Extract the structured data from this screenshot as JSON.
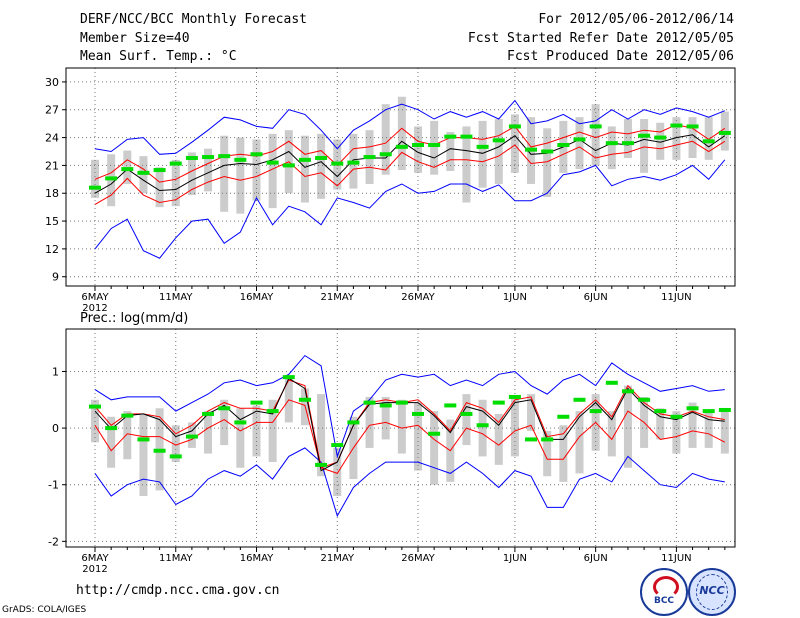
{
  "header": {
    "title": "DERF/NCC/BCC Monthly Forecast",
    "member_size": "Member Size=40",
    "variable": "Mean Surf. Temp.: °C",
    "period": "For 2012/05/06-2012/06/14",
    "started": "Fcst Started Refer Date 2012/05/05",
    "produced": "Fcst Produced Date 2012/05/06"
  },
  "footer": {
    "url": "http://cmdp.ncc.cma.gov.cn",
    "grads": "GrADS: COLA/IGES",
    "logo_bcc": "BCC",
    "logo_ncc": "NCC"
  },
  "colors": {
    "envelope": "#0000ff",
    "spread": "#ff0000",
    "mean": "#000000",
    "member": "#00dd00",
    "box": "#cccccc"
  },
  "chart_data": [
    {
      "type": "line",
      "title": "Mean Surf. Temp.: °C",
      "x_labels": [
        "6MAY",
        "11MAY",
        "16MAY",
        "21MAY",
        "26MAY",
        "1JUN",
        "6JUN",
        "11JUN"
      ],
      "x_label_days": [
        0,
        5,
        10,
        15,
        20,
        26,
        31,
        36
      ],
      "year_label": "2012",
      "ylim": [
        8,
        31.5
      ],
      "yticks": [
        9,
        12,
        15,
        18,
        21,
        24,
        27,
        30
      ],
      "series": [
        {
          "name": "max",
          "values": [
            22.8,
            22.5,
            23.8,
            24.0,
            22.2,
            22.3,
            23.5,
            24.8,
            26.2,
            25.9,
            25.2,
            25.0,
            27.0,
            26.5,
            24.8,
            22.8,
            24.8,
            25.8,
            27.0,
            27.6,
            27.0,
            26.0,
            26.8,
            26.2,
            26.8,
            26.0,
            28.0,
            25.5,
            25.8,
            26.5,
            25.5,
            25.8,
            27.0,
            26.0,
            27.0,
            26.5,
            27.2,
            26.8,
            26.2,
            26.9
          ]
        },
        {
          "name": "upper",
          "values": [
            19.5,
            20.2,
            21.6,
            20.6,
            19.2,
            19.5,
            20.4,
            21.2,
            22.0,
            22.2,
            22.0,
            22.5,
            23.6,
            22.2,
            22.6,
            21.0,
            22.8,
            23.0,
            23.4,
            25.0,
            23.6,
            23.2,
            24.0,
            24.0,
            23.8,
            24.2,
            25.2,
            23.0,
            23.4,
            24.0,
            24.6,
            24.0,
            24.6,
            24.4,
            24.8,
            24.6,
            25.4,
            25.0,
            23.8,
            25.0
          ]
        },
        {
          "name": "mean",
          "values": [
            18.0,
            19.0,
            20.6,
            19.4,
            18.3,
            18.4,
            19.4,
            20.2,
            21.0,
            21.2,
            21.1,
            21.6,
            22.5,
            20.8,
            21.4,
            19.8,
            21.6,
            21.8,
            21.8,
            23.6,
            22.4,
            21.8,
            22.8,
            22.6,
            22.3,
            23.0,
            24.2,
            22.2,
            22.3,
            23.0,
            23.8,
            22.6,
            23.4,
            23.2,
            23.8,
            23.5,
            24.0,
            24.3,
            23.0,
            24.2
          ]
        },
        {
          "name": "lower",
          "values": [
            16.8,
            17.8,
            19.6,
            17.8,
            17.0,
            17.3,
            18.4,
            19.2,
            19.8,
            19.4,
            19.8,
            20.6,
            21.4,
            19.8,
            20.2,
            18.8,
            20.6,
            20.8,
            20.5,
            22.4,
            21.4,
            20.8,
            21.6,
            21.6,
            21.4,
            22.0,
            23.2,
            21.2,
            21.4,
            22.2,
            23.0,
            21.8,
            22.2,
            22.4,
            23.0,
            22.8,
            23.2,
            23.6,
            22.5,
            23.6
          ]
        },
        {
          "name": "min",
          "values": [
            12.0,
            14.2,
            15.2,
            11.8,
            11.0,
            13.2,
            15.0,
            15.2,
            12.6,
            13.8,
            17.5,
            14.6,
            16.6,
            16.0,
            14.6,
            17.5,
            17.0,
            16.4,
            18.2,
            19.0,
            18.0,
            18.2,
            19.0,
            19.0,
            18.2,
            18.9,
            17.2,
            17.2,
            18.0,
            20.0,
            20.3,
            21.0,
            18.8,
            19.5,
            19.8,
            19.4,
            20.0,
            21.0,
            19.5,
            21.6
          ]
        },
        {
          "name": "box_low",
          "values": [
            17.5,
            16.6,
            19.0,
            18.0,
            16.5,
            16.6,
            17.8,
            18.2,
            16.0,
            15.8,
            17.2,
            16.4,
            18.0,
            17.0,
            17.4,
            18.4,
            18.5,
            19.0,
            20.0,
            20.5,
            20.2,
            20.0,
            20.4,
            17.0,
            18.6,
            19.0,
            20.2,
            19.0,
            17.6,
            20.2,
            20.6,
            21.0,
            20.6,
            21.8,
            20.2,
            21.6,
            21.6,
            21.8,
            21.6,
            22.6
          ]
        },
        {
          "name": "box_high",
          "values": [
            21.6,
            22.2,
            22.6,
            22.0,
            20.8,
            21.6,
            22.4,
            22.8,
            24.2,
            24.0,
            23.8,
            24.4,
            24.8,
            24.2,
            24.4,
            23.8,
            24.4,
            24.8,
            27.6,
            28.4,
            25.2,
            25.8,
            24.6,
            25.2,
            25.8,
            26.0,
            26.5,
            26.2,
            25.0,
            25.8,
            26.2,
            27.6,
            25.2,
            26.0,
            26.0,
            25.6,
            26.2,
            26.2,
            26.2,
            26.8
          ]
        },
        {
          "name": "member",
          "values": [
            18.6,
            19.6,
            20.6,
            20.2,
            20.5,
            21.2,
            21.8,
            21.9,
            22.0,
            21.6,
            22.2,
            21.3,
            21.0,
            21.6,
            21.8,
            21.2,
            21.3,
            21.9,
            22.2,
            23.0,
            23.2,
            23.2,
            24.1,
            24.1,
            23.0,
            23.7,
            25.2,
            22.7,
            22.5,
            23.2,
            23.8,
            25.2,
            23.4,
            23.4,
            24.2,
            24.0,
            25.3,
            25.2,
            23.6,
            24.5
          ]
        }
      ]
    },
    {
      "type": "line",
      "title": "Prec.: log(mm/d)",
      "x_labels": [
        "6MAY",
        "11MAY",
        "16MAY",
        "21MAY",
        "26MAY",
        "1JUN",
        "6JUN",
        "11JUN"
      ],
      "x_label_days": [
        0,
        5,
        10,
        15,
        20,
        26,
        31,
        36
      ],
      "year_label": "2012",
      "ylim": [
        -2.1,
        1.75
      ],
      "yticks": [
        -2,
        -1,
        0,
        1
      ],
      "series": [
        {
          "name": "max",
          "values": [
            0.68,
            0.5,
            0.55,
            0.55,
            0.55,
            0.3,
            0.45,
            0.6,
            0.8,
            0.85,
            0.75,
            0.8,
            0.95,
            1.28,
            1.1,
            -0.5,
            0.3,
            0.5,
            0.85,
            0.95,
            0.9,
            0.95,
            0.75,
            0.85,
            0.75,
            0.95,
            1.0,
            0.75,
            0.6,
            0.85,
            0.95,
            0.75,
            1.15,
            0.95,
            0.8,
            0.65,
            0.7,
            0.75,
            0.65,
            0.68
          ]
        },
        {
          "name": "upper",
          "values": [
            0.38,
            0.05,
            0.25,
            0.25,
            0.2,
            -0.1,
            0.05,
            0.3,
            0.45,
            0.35,
            0.35,
            0.3,
            0.85,
            0.75,
            -0.7,
            -0.6,
            0.05,
            0.45,
            0.5,
            0.45,
            0.5,
            0.25,
            -0.05,
            0.45,
            0.35,
            0.1,
            0.5,
            0.55,
            -0.15,
            -0.1,
            0.25,
            0.5,
            0.2,
            0.75,
            0.45,
            0.25,
            0.2,
            0.3,
            0.2,
            0.15
          ]
        },
        {
          "name": "mean",
          "values": [
            0.3,
            -0.02,
            0.22,
            0.25,
            0.15,
            -0.15,
            -0.05,
            0.25,
            0.4,
            0.15,
            0.3,
            0.25,
            0.88,
            0.7,
            -0.75,
            -0.6,
            0.05,
            0.42,
            0.45,
            0.45,
            0.45,
            0.22,
            -0.08,
            0.38,
            0.3,
            0.05,
            0.45,
            0.5,
            -0.2,
            -0.2,
            0.2,
            0.45,
            0.15,
            0.7,
            0.4,
            0.2,
            0.15,
            0.28,
            0.15,
            0.12
          ]
        },
        {
          "name": "lower",
          "values": [
            0.05,
            -0.4,
            -0.1,
            -0.15,
            -0.15,
            -0.3,
            -0.2,
            0.0,
            0.15,
            -0.05,
            0.1,
            0.1,
            0.5,
            0.4,
            -0.7,
            -0.8,
            -0.35,
            0.05,
            0.1,
            0.0,
            0.05,
            -0.2,
            -0.4,
            0.0,
            -0.1,
            -0.3,
            -0.05,
            0.05,
            -0.55,
            -0.55,
            -0.15,
            0.1,
            -0.2,
            0.3,
            0.1,
            -0.2,
            -0.15,
            -0.05,
            -0.1,
            -0.25
          ]
        },
        {
          "name": "min",
          "values": [
            -0.8,
            -1.2,
            -1.0,
            -0.9,
            -0.95,
            -1.35,
            -1.2,
            -0.9,
            -0.75,
            -0.85,
            -0.65,
            -0.9,
            -0.5,
            -0.35,
            -0.6,
            -1.55,
            -1.05,
            -0.8,
            -0.6,
            -0.6,
            -0.6,
            -0.7,
            -0.8,
            -0.6,
            -0.8,
            -1.05,
            -0.75,
            -0.85,
            -1.4,
            -1.4,
            -0.9,
            -0.8,
            -0.95,
            -0.5,
            -0.75,
            -1.0,
            -1.05,
            -0.8,
            -0.9,
            -0.95
          ]
        },
        {
          "name": "box_low",
          "values": [
            -0.25,
            -0.7,
            -0.55,
            -1.2,
            -1.1,
            -0.6,
            -0.35,
            -0.45,
            -0.3,
            -0.7,
            -0.5,
            -0.6,
            0.1,
            0.05,
            -0.85,
            -1.2,
            -0.9,
            -0.35,
            -0.2,
            -0.45,
            -0.75,
            -1.0,
            -0.95,
            -0.3,
            -0.5,
            -0.65,
            -0.5,
            -0.05,
            -0.85,
            -0.95,
            -0.8,
            -0.4,
            -0.5,
            -0.7,
            -0.35,
            -0.2,
            -0.45,
            -0.35,
            -0.35,
            -0.45
          ]
        },
        {
          "name": "box_high",
          "values": [
            0.5,
            0.2,
            0.3,
            0.25,
            0.35,
            0.05,
            0.1,
            0.3,
            0.5,
            0.35,
            0.4,
            0.5,
            0.9,
            0.7,
            0.6,
            -0.35,
            0.2,
            0.55,
            0.55,
            0.5,
            0.45,
            0.3,
            0.15,
            0.6,
            0.5,
            0.25,
            0.55,
            0.6,
            -0.05,
            0.05,
            0.3,
            0.6,
            0.3,
            0.75,
            0.55,
            0.35,
            0.3,
            0.45,
            0.3,
            0.3
          ]
        },
        {
          "name": "member",
          "values": [
            0.38,
            0.0,
            0.22,
            -0.2,
            -0.4,
            -0.5,
            -0.15,
            0.25,
            0.35,
            0.1,
            0.45,
            0.3,
            0.9,
            0.5,
            -0.65,
            -0.3,
            0.1,
            0.45,
            0.4,
            0.45,
            0.25,
            -0.1,
            0.4,
            0.25,
            0.05,
            0.45,
            0.55,
            -0.2,
            -0.2,
            0.2,
            0.5,
            0.3,
            0.8,
            0.65,
            0.5,
            0.3,
            0.2,
            0.35,
            0.3,
            0.32
          ]
        }
      ]
    }
  ]
}
